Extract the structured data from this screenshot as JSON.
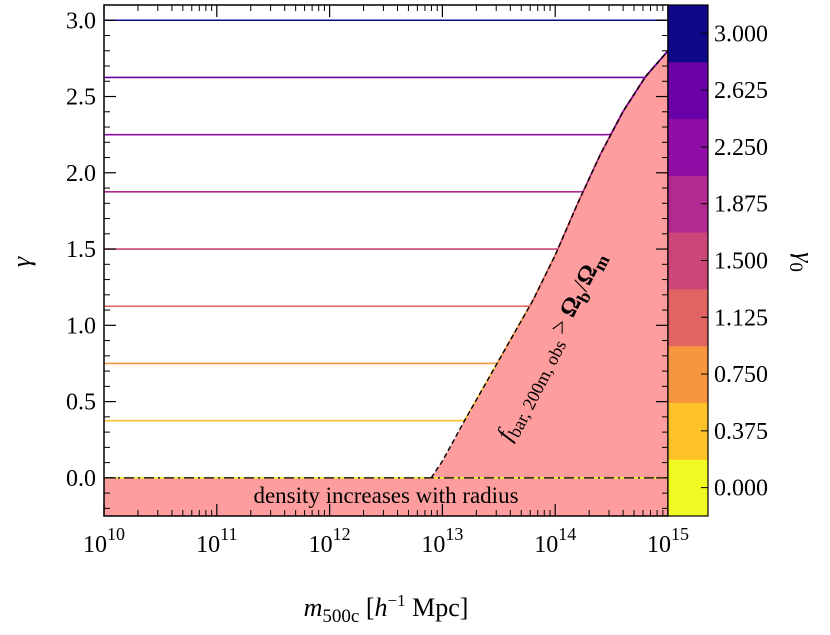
{
  "chart_data": {
    "type": "line",
    "xscale": "log",
    "xlim": [
      10000000000.0,
      1000000000000000.0
    ],
    "ylim": [
      -0.25,
      3.1
    ],
    "xlabel": {
      "main": "m",
      "sub": "500c",
      "unit_open": " [",
      "unit_h": "h",
      "unit_exp": "−1",
      "unit_rest": " Mpc]"
    },
    "ylabel": "γ",
    "x_ticks": [
      {
        "base": "10",
        "exp": "10",
        "value": 10000000000.0
      },
      {
        "base": "10",
        "exp": "11",
        "value": 100000000000.0
      },
      {
        "base": "10",
        "exp": "12",
        "value": 1000000000000.0
      },
      {
        "base": "10",
        "exp": "13",
        "value": 10000000000000.0
      },
      {
        "base": "10",
        "exp": "14",
        "value": 100000000000000.0
      },
      {
        "base": "10",
        "exp": "15",
        "value": 1000000000000000.0
      }
    ],
    "y_ticks": [
      "0.0",
      "0.5",
      "1.0",
      "1.5",
      "2.0",
      "2.5",
      "3.0"
    ],
    "series": [
      {
        "gamma0": 0.0,
        "color": "#f0f921"
      },
      {
        "gamma0": 0.375,
        "color": "#fec229"
      },
      {
        "gamma0": 0.75,
        "color": "#f89540"
      },
      {
        "gamma0": 1.125,
        "color": "#e16462"
      },
      {
        "gamma0": 1.5,
        "color": "#cc4778"
      },
      {
        "gamma0": 1.875,
        "color": "#b12a90"
      },
      {
        "gamma0": 2.25,
        "color": "#8f0da4"
      },
      {
        "gamma0": 2.625,
        "color": "#6a00a8"
      },
      {
        "gamma0": 3.0,
        "color": "#0d0887"
      }
    ],
    "boundary_curve": {
      "log10_m": [
        12.9,
        13.0,
        13.2,
        13.4,
        13.6,
        13.8,
        14.0,
        14.2,
        14.4,
        14.6,
        14.8,
        15.0
      ],
      "gamma": [
        0.0,
        0.11,
        0.38,
        0.64,
        0.9,
        1.16,
        1.46,
        1.8,
        2.12,
        2.4,
        2.63,
        2.8
      ]
    },
    "region_color": "#fe9d9d",
    "annotations": {
      "lower_region": "density increases with radius",
      "upper_region": {
        "f": "f",
        "f_sub": "bar, 200m, obs",
        "gt": " > ",
        "omega": "Ω",
        "omega_b_sub": "b",
        "slash": "/",
        "omega_m_sub": "m"
      }
    },
    "colorbar": {
      "label": "γ",
      "label_sub": "0",
      "ticks": [
        "0.000",
        "0.375",
        "0.750",
        "1.125",
        "1.500",
        "1.875",
        "2.250",
        "2.625",
        "3.000"
      ],
      "colors": [
        "#f0f921",
        "#fec229",
        "#f89540",
        "#e16462",
        "#cc4778",
        "#b12a90",
        "#8f0da4",
        "#6a00a8",
        "#0d0887"
      ]
    }
  }
}
